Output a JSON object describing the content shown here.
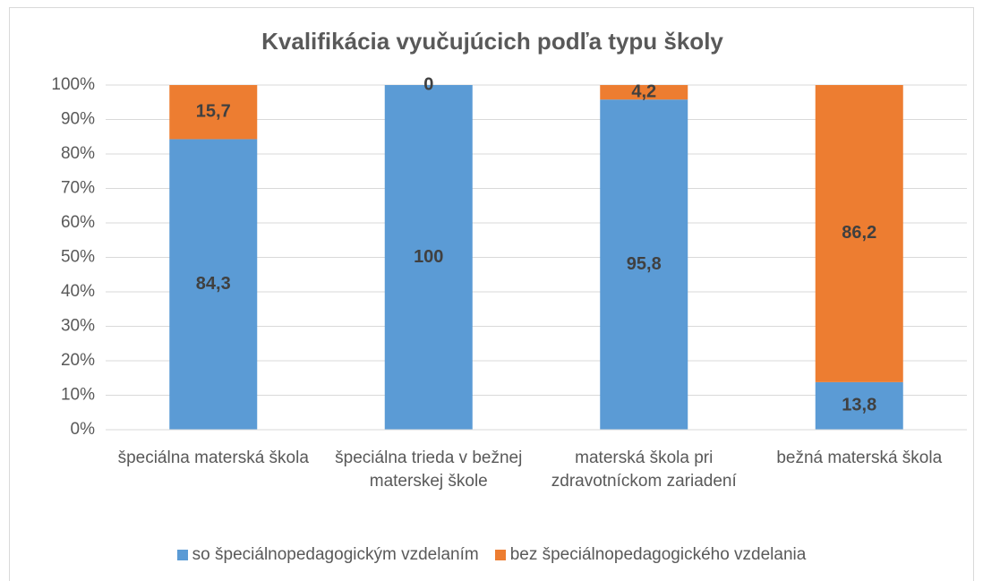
{
  "chart_data": {
    "type": "stacked_bar",
    "title": "Kvalifikácia vyučujúcich podľa typu školy",
    "categories": [
      "špeciálna materská škola",
      "špeciálna trieda v bežnej materskej škole",
      "materská škola pri zdravotníckom zariadení",
      "bežná materská škola"
    ],
    "series": [
      {
        "name": "so špeciálnopedagogickým vzdelaním",
        "color": "#5b9bd5",
        "values": [
          84.3,
          100,
          95.8,
          13.8
        ],
        "value_labels": [
          "84,3",
          "100",
          "95,8",
          "13,8"
        ]
      },
      {
        "name": "bez špeciálnopedagogického vzdelania",
        "color": "#ed7d31",
        "values": [
          15.7,
          0,
          4.2,
          86.2
        ],
        "value_labels": [
          "15,7",
          "0",
          "4,2",
          "86,2"
        ]
      }
    ],
    "ylim": [
      0,
      100
    ],
    "yticks": [
      {
        "value": 0,
        "label": "0%"
      },
      {
        "value": 10,
        "label": "10%"
      },
      {
        "value": 20,
        "label": "20%"
      },
      {
        "value": 30,
        "label": "30%"
      },
      {
        "value": 40,
        "label": "40%"
      },
      {
        "value": 50,
        "label": "50%"
      },
      {
        "value": 60,
        "label": "60%"
      },
      {
        "value": 70,
        "label": "70%"
      },
      {
        "value": 80,
        "label": "80%"
      },
      {
        "value": 90,
        "label": "90%"
      },
      {
        "value": 100,
        "label": "100%"
      }
    ],
    "grid": true,
    "legend": "bottom"
  }
}
